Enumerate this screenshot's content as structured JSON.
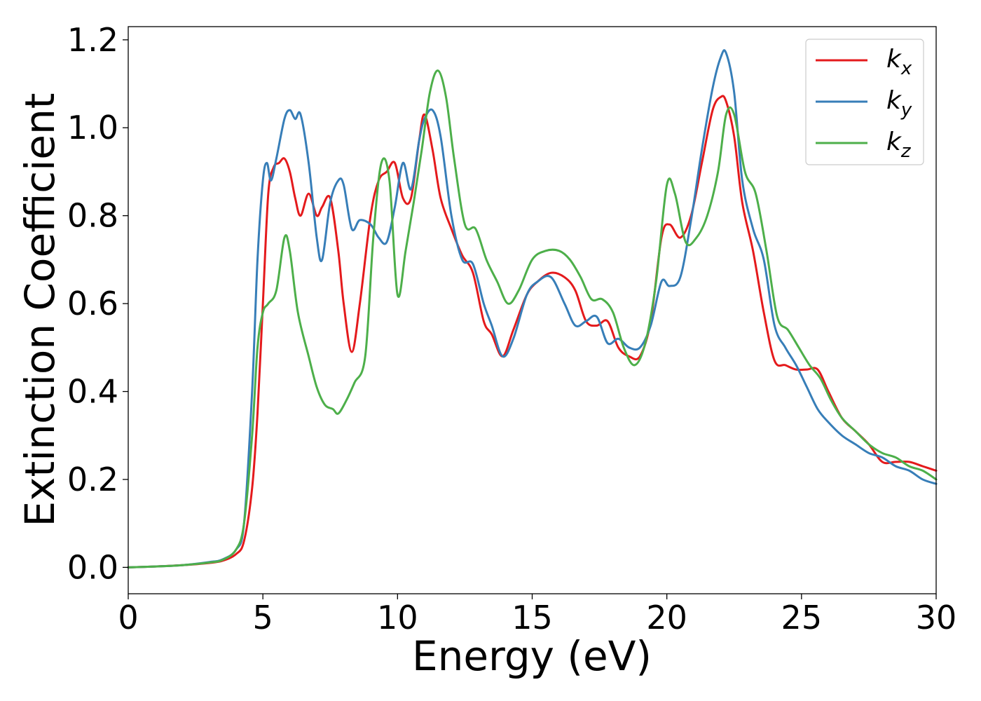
{
  "chart_data": {
    "type": "line",
    "title": "",
    "xlabel": "Energy (eV)",
    "ylabel": "Extinction Coefficient",
    "xlim": [
      0,
      30
    ],
    "ylim": [
      -0.06,
      1.23
    ],
    "xticks": [
      0,
      5,
      10,
      15,
      20,
      25,
      30
    ],
    "yticks": [
      "0.0",
      "0.2",
      "0.4",
      "0.6",
      "0.8",
      "1.0",
      "1.2"
    ],
    "grid": false,
    "legend_position": "top-right",
    "series": [
      {
        "name": "k_x",
        "label_base": "k",
        "label_sub": "x",
        "color": "#e41a1c",
        "x": [
          0,
          1,
          2,
          3,
          3.5,
          4,
          4.3,
          4.6,
          4.8,
          5.0,
          5.2,
          5.4,
          5.6,
          5.8,
          6.0,
          6.2,
          6.4,
          6.7,
          7.0,
          7.2,
          7.5,
          7.8,
          8.0,
          8.3,
          8.6,
          9.0,
          9.3,
          9.6,
          9.9,
          10.2,
          10.5,
          10.8,
          11.0,
          11.3,
          11.6,
          12.0,
          12.4,
          12.8,
          13.2,
          13.5,
          13.9,
          14.3,
          14.8,
          15.2,
          15.7,
          16.2,
          16.6,
          17.0,
          17.4,
          17.8,
          18.2,
          18.6,
          19.0,
          19.4,
          19.8,
          20.1,
          20.5,
          20.9,
          21.3,
          21.7,
          22.0,
          22.2,
          22.5,
          22.8,
          23.2,
          23.6,
          24.0,
          24.4,
          24.8,
          25.2,
          25.6,
          26.0,
          26.5,
          27.0,
          27.5,
          28.0,
          28.5,
          29.0,
          29.5,
          30.0
        ],
        "y": [
          0.0,
          0.002,
          0.005,
          0.01,
          0.015,
          0.03,
          0.06,
          0.18,
          0.35,
          0.6,
          0.85,
          0.91,
          0.92,
          0.93,
          0.9,
          0.84,
          0.8,
          0.85,
          0.8,
          0.82,
          0.84,
          0.72,
          0.6,
          0.49,
          0.6,
          0.8,
          0.88,
          0.9,
          0.92,
          0.84,
          0.84,
          0.97,
          1.03,
          0.95,
          0.84,
          0.77,
          0.71,
          0.67,
          0.56,
          0.53,
          0.48,
          0.54,
          0.62,
          0.65,
          0.67,
          0.66,
          0.63,
          0.56,
          0.55,
          0.56,
          0.5,
          0.48,
          0.48,
          0.56,
          0.75,
          0.78,
          0.75,
          0.8,
          0.92,
          1.04,
          1.07,
          1.06,
          0.98,
          0.83,
          0.72,
          0.58,
          0.47,
          0.46,
          0.45,
          0.45,
          0.45,
          0.4,
          0.34,
          0.31,
          0.28,
          0.24,
          0.24,
          0.24,
          0.23,
          0.22
        ]
      },
      {
        "name": "k_y",
        "label_base": "k",
        "label_sub": "y",
        "color": "#377eb8",
        "x": [
          0,
          1,
          2,
          3,
          3.5,
          4,
          4.3,
          4.6,
          4.8,
          5.0,
          5.15,
          5.3,
          5.5,
          5.8,
          6.0,
          6.2,
          6.4,
          6.7,
          7.0,
          7.2,
          7.5,
          7.8,
          8.0,
          8.3,
          8.6,
          9.0,
          9.3,
          9.6,
          9.9,
          10.2,
          10.5,
          10.8,
          11.0,
          11.3,
          11.6,
          12.0,
          12.4,
          12.8,
          13.2,
          13.5,
          13.9,
          14.3,
          14.8,
          15.2,
          15.7,
          16.2,
          16.6,
          17.0,
          17.4,
          17.8,
          18.2,
          18.6,
          19.0,
          19.4,
          19.8,
          20.1,
          20.5,
          20.9,
          21.3,
          21.7,
          22.0,
          22.2,
          22.5,
          22.8,
          23.2,
          23.6,
          24.0,
          24.4,
          24.8,
          25.2,
          25.6,
          26.0,
          26.5,
          27.0,
          27.5,
          28.0,
          28.5,
          29.0,
          29.5,
          30.0
        ],
        "y": [
          0.0,
          0.002,
          0.005,
          0.012,
          0.018,
          0.04,
          0.1,
          0.4,
          0.7,
          0.88,
          0.92,
          0.88,
          0.93,
          1.02,
          1.04,
          1.02,
          1.03,
          0.92,
          0.75,
          0.7,
          0.83,
          0.88,
          0.87,
          0.77,
          0.79,
          0.78,
          0.75,
          0.74,
          0.82,
          0.92,
          0.86,
          0.97,
          1.02,
          1.04,
          0.98,
          0.8,
          0.7,
          0.69,
          0.6,
          0.55,
          0.48,
          0.52,
          0.62,
          0.65,
          0.66,
          0.6,
          0.55,
          0.56,
          0.57,
          0.51,
          0.52,
          0.5,
          0.5,
          0.55,
          0.65,
          0.64,
          0.66,
          0.79,
          0.95,
          1.09,
          1.16,
          1.17,
          1.08,
          0.88,
          0.77,
          0.7,
          0.55,
          0.5,
          0.46,
          0.41,
          0.36,
          0.33,
          0.3,
          0.28,
          0.26,
          0.25,
          0.23,
          0.22,
          0.2,
          0.19
        ]
      },
      {
        "name": "k_z",
        "label_base": "k",
        "label_sub": "z",
        "color": "#4daf4a",
        "x": [
          0,
          1,
          2,
          3,
          3.5,
          4,
          4.3,
          4.6,
          4.8,
          5.0,
          5.2,
          5.5,
          5.8,
          6.0,
          6.3,
          6.7,
          7.0,
          7.3,
          7.6,
          7.8,
          8.1,
          8.4,
          8.8,
          9.1,
          9.4,
          9.7,
          10.0,
          10.3,
          10.6,
          10.9,
          11.2,
          11.5,
          11.8,
          12.1,
          12.5,
          12.9,
          13.3,
          13.7,
          14.1,
          14.5,
          15.0,
          15.5,
          16.0,
          16.4,
          16.8,
          17.2,
          17.6,
          18.0,
          18.4,
          18.8,
          19.2,
          19.6,
          20.0,
          20.3,
          20.7,
          21.1,
          21.5,
          21.9,
          22.2,
          22.5,
          22.9,
          23.3,
          23.7,
          24.1,
          24.5,
          24.9,
          25.3,
          25.7,
          26.1,
          26.5,
          27.0,
          27.5,
          28.0,
          28.5,
          29.0,
          29.5,
          30.0
        ],
        "y": [
          0.0,
          0.002,
          0.005,
          0.011,
          0.017,
          0.04,
          0.1,
          0.3,
          0.5,
          0.58,
          0.6,
          0.63,
          0.75,
          0.72,
          0.58,
          0.48,
          0.41,
          0.37,
          0.36,
          0.35,
          0.38,
          0.42,
          0.48,
          0.75,
          0.92,
          0.88,
          0.62,
          0.72,
          0.83,
          0.95,
          1.08,
          1.13,
          1.07,
          0.93,
          0.78,
          0.77,
          0.7,
          0.65,
          0.6,
          0.63,
          0.7,
          0.72,
          0.72,
          0.7,
          0.66,
          0.61,
          0.61,
          0.58,
          0.5,
          0.46,
          0.51,
          0.65,
          0.87,
          0.85,
          0.74,
          0.75,
          0.8,
          0.9,
          1.03,
          1.03,
          0.9,
          0.85,
          0.72,
          0.57,
          0.54,
          0.5,
          0.46,
          0.43,
          0.38,
          0.34,
          0.31,
          0.28,
          0.26,
          0.25,
          0.23,
          0.22,
          0.2
        ]
      }
    ]
  }
}
